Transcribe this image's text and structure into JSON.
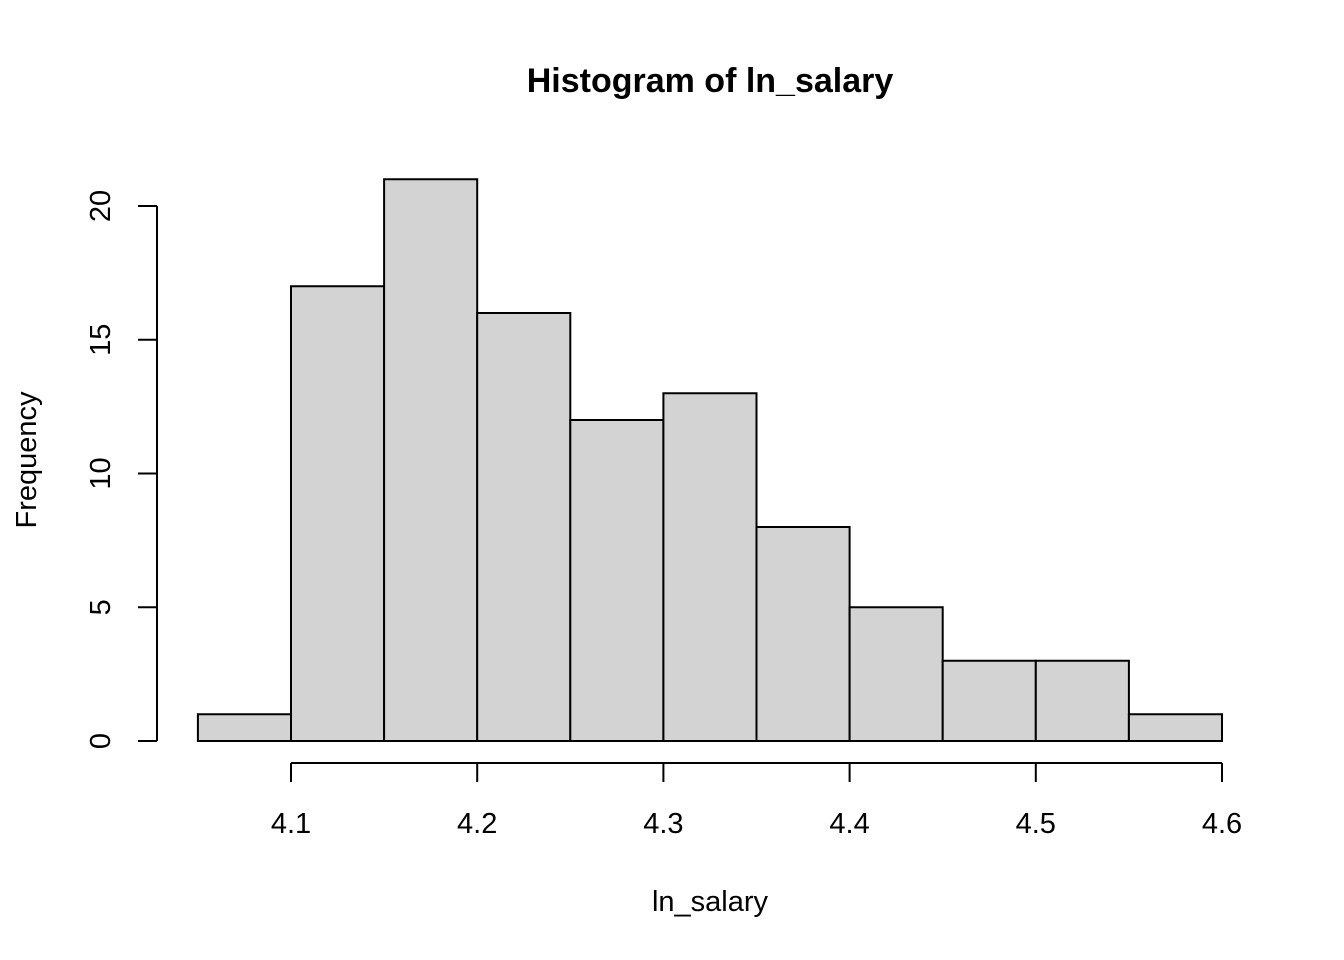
{
  "chart_data": {
    "type": "bar",
    "title": "Histogram of ln_salary",
    "xlabel": "ln_salary",
    "ylabel": "Frequency",
    "bins": [
      {
        "start": 4.05,
        "end": 4.1,
        "count": 1
      },
      {
        "start": 4.1,
        "end": 4.15,
        "count": 17
      },
      {
        "start": 4.15,
        "end": 4.2,
        "count": 21
      },
      {
        "start": 4.2,
        "end": 4.25,
        "count": 16
      },
      {
        "start": 4.25,
        "end": 4.3,
        "count": 12
      },
      {
        "start": 4.3,
        "end": 4.35,
        "count": 13
      },
      {
        "start": 4.35,
        "end": 4.4,
        "count": 8
      },
      {
        "start": 4.4,
        "end": 4.45,
        "count": 5
      },
      {
        "start": 4.45,
        "end": 4.5,
        "count": 3
      },
      {
        "start": 4.5,
        "end": 4.55,
        "count": 3
      },
      {
        "start": 4.55,
        "end": 4.6,
        "count": 1
      }
    ],
    "x_ticks": [
      4.1,
      4.2,
      4.3,
      4.4,
      4.5,
      4.6
    ],
    "x_tick_labels": [
      "4.1",
      "4.2",
      "4.3",
      "4.4",
      "4.5",
      "4.6"
    ],
    "y_ticks": [
      0,
      5,
      10,
      15,
      20
    ],
    "y_tick_labels": [
      "0",
      "5",
      "10",
      "15",
      "20"
    ],
    "xlim": [
      4.05,
      4.6
    ],
    "ylim": [
      0,
      21
    ],
    "grid": false,
    "bar_color": "#d3d3d3",
    "edge_color": "#000000"
  }
}
